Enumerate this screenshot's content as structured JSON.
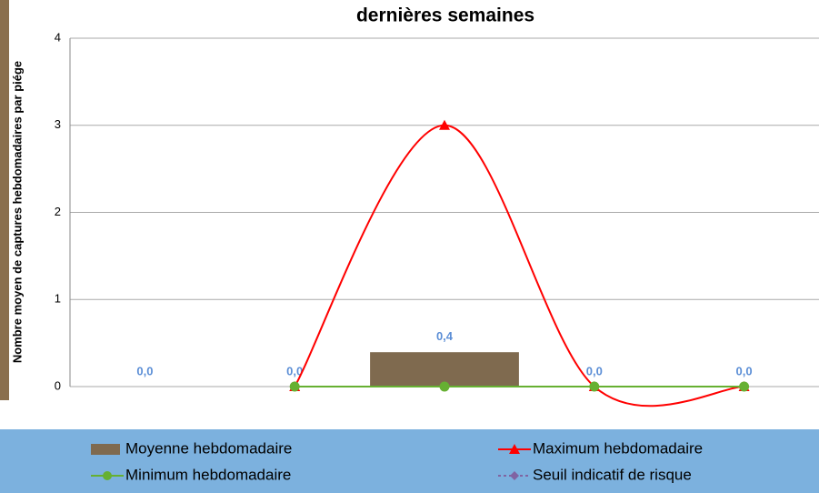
{
  "chart_data": {
    "type": "bar-line",
    "title": "dernières semaines",
    "y_label": "Nombre moyen de captures hebdomadaires par piége",
    "categories": [
      null,
      null,
      null,
      null,
      null
    ],
    "series": [
      {
        "name": "Moyenne hebdomadaire",
        "kind": "bar",
        "color": "#7f6a4f",
        "values": [
          0,
          0,
          0.4,
          0,
          0
        ],
        "value_labels": [
          "0,0",
          "0,0",
          "0,4",
          "0,0",
          "0,0"
        ]
      },
      {
        "name": "Maximum hebdomadaire",
        "kind": "line",
        "marker": "triangle",
        "color": "#ff0000",
        "values": [
          null,
          0,
          3,
          0,
          0
        ]
      },
      {
        "name": "Minimum hebdomadaire",
        "kind": "line",
        "marker": "circle",
        "color": "#66b032",
        "values": [
          null,
          0,
          0,
          0,
          0
        ]
      },
      {
        "name": "Seuil indicatif de risque",
        "kind": "line",
        "marker": "diamond",
        "dashed": true,
        "color": "#8064a2",
        "values": [
          null,
          null,
          null,
          null,
          null
        ]
      }
    ],
    "ylim": [
      0,
      4
    ],
    "yticks": [
      0,
      1,
      2,
      3,
      4
    ],
    "grid": true,
    "smooth": true
  }
}
